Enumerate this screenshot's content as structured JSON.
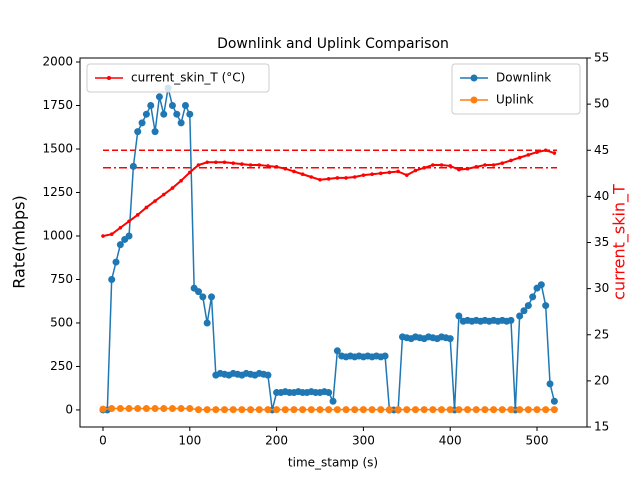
{
  "chart_data": {
    "type": "line",
    "title": "Downlink and Uplink Comparison",
    "x_label": "time_stamp (s)",
    "y_label": "Rate(mbps)",
    "y2_label": "current_skin_T",
    "xlim": [
      -26.5,
      557.6
    ],
    "xticks": [
      0,
      100,
      200,
      300,
      400,
      500
    ],
    "ylim": [
      -98,
      2023
    ],
    "yticks": [
      0,
      250,
      500,
      750,
      1000,
      1250,
      1500,
      1750,
      2000
    ],
    "y2lim": [
      15,
      55
    ],
    "y2ticks": [
      15,
      20,
      25,
      30,
      35,
      40,
      45,
      50,
      55
    ],
    "series": [
      {
        "name": "Downlink",
        "color": "#1f77b4",
        "marker": "circle",
        "x": [
          0,
          5,
          10,
          15,
          20,
          25,
          30,
          35,
          40,
          45,
          50,
          55,
          60,
          65,
          70,
          75,
          80,
          85,
          90,
          95,
          100,
          105,
          110,
          115,
          120,
          125,
          130,
          135,
          140,
          145,
          150,
          155,
          160,
          165,
          170,
          175,
          180,
          185,
          190,
          195,
          200,
          205,
          210,
          215,
          220,
          225,
          230,
          235,
          240,
          245,
          250,
          255,
          260,
          265,
          270,
          275,
          280,
          285,
          290,
          295,
          300,
          305,
          310,
          315,
          320,
          325,
          330,
          335,
          340,
          345,
          350,
          355,
          360,
          365,
          370,
          375,
          380,
          385,
          390,
          395,
          400,
          405,
          410,
          415,
          420,
          425,
          430,
          435,
          440,
          445,
          450,
          455,
          460,
          465,
          470,
          475,
          480,
          485,
          490,
          495,
          500,
          505,
          510,
          515,
          520
        ],
        "values": [
          0,
          0,
          750,
          850,
          950,
          980,
          1000,
          1400,
          1600,
          1650,
          1700,
          1750,
          1600,
          1800,
          1700,
          1850,
          1750,
          1700,
          1650,
          1750,
          1700,
          700,
          680,
          650,
          500,
          650,
          200,
          210,
          205,
          200,
          210,
          205,
          200,
          210,
          205,
          200,
          210,
          205,
          200,
          0,
          100,
          100,
          105,
          100,
          100,
          105,
          100,
          100,
          105,
          100,
          100,
          105,
          100,
          50,
          340,
          310,
          305,
          310,
          305,
          310,
          305,
          310,
          305,
          310,
          305,
          310,
          0,
          0,
          0,
          420,
          415,
          410,
          420,
          415,
          410,
          420,
          415,
          410,
          420,
          415,
          410,
          0,
          540,
          510,
          515,
          510,
          515,
          510,
          515,
          510,
          515,
          510,
          515,
          510,
          515,
          0,
          540,
          570,
          600,
          650,
          700,
          720,
          600,
          150,
          50
        ]
      },
      {
        "name": "Uplink",
        "color": "#ff7f0e",
        "marker": "circle",
        "x": [
          0,
          10,
          20,
          30,
          40,
          50,
          60,
          70,
          80,
          90,
          100,
          110,
          120,
          130,
          140,
          150,
          160,
          170,
          180,
          190,
          200,
          210,
          220,
          230,
          240,
          250,
          260,
          270,
          280,
          290,
          300,
          310,
          320,
          330,
          340,
          350,
          360,
          370,
          380,
          390,
          400,
          410,
          420,
          430,
          440,
          450,
          460,
          470,
          480,
          490,
          500,
          510,
          520
        ],
        "values": [
          5,
          8,
          8,
          8,
          8,
          8,
          8,
          8,
          8,
          8,
          8,
          2,
          2,
          2,
          2,
          2,
          2,
          2,
          2,
          2,
          2,
          2,
          2,
          2,
          2,
          2,
          2,
          2,
          2,
          2,
          2,
          2,
          2,
          2,
          2,
          2,
          2,
          2,
          2,
          2,
          2,
          2,
          2,
          2,
          2,
          2,
          2,
          2,
          2,
          2,
          2,
          2,
          2
        ]
      },
      {
        "name": "current_skin_T (°C)",
        "color": "#ff0000",
        "marker": "star",
        "axis": "y2",
        "x": [
          0,
          10,
          20,
          30,
          40,
          50,
          60,
          70,
          80,
          90,
          100,
          110,
          120,
          130,
          140,
          150,
          160,
          170,
          180,
          190,
          200,
          210,
          220,
          230,
          240,
          250,
          260,
          270,
          280,
          290,
          300,
          310,
          320,
          330,
          340,
          350,
          360,
          370,
          380,
          390,
          400,
          410,
          420,
          430,
          440,
          450,
          460,
          470,
          480,
          490,
          500,
          510,
          520
        ],
        "values": [
          35.7,
          35.9,
          36.6,
          37.3,
          38.0,
          38.8,
          39.5,
          40.2,
          40.9,
          41.7,
          42.6,
          43.4,
          43.7,
          43.7,
          43.7,
          43.6,
          43.5,
          43.4,
          43.4,
          43.3,
          43.2,
          43.0,
          42.7,
          42.4,
          42.1,
          41.8,
          41.9,
          42.0,
          42.0,
          42.1,
          42.3,
          42.4,
          42.5,
          42.6,
          42.7,
          42.3,
          42.8,
          43.1,
          43.4,
          43.4,
          43.3,
          42.9,
          43.0,
          43.2,
          43.4,
          43.4,
          43.6,
          43.9,
          44.2,
          44.5,
          44.8,
          45.0,
          44.7
        ]
      }
    ],
    "hlines": [
      {
        "value": 45,
        "axis": "y2",
        "color": "#ff0000",
        "style": "dashed"
      },
      {
        "value": 43.1,
        "axis": "y2",
        "color": "#ff0000",
        "style": "dashdot"
      }
    ]
  }
}
